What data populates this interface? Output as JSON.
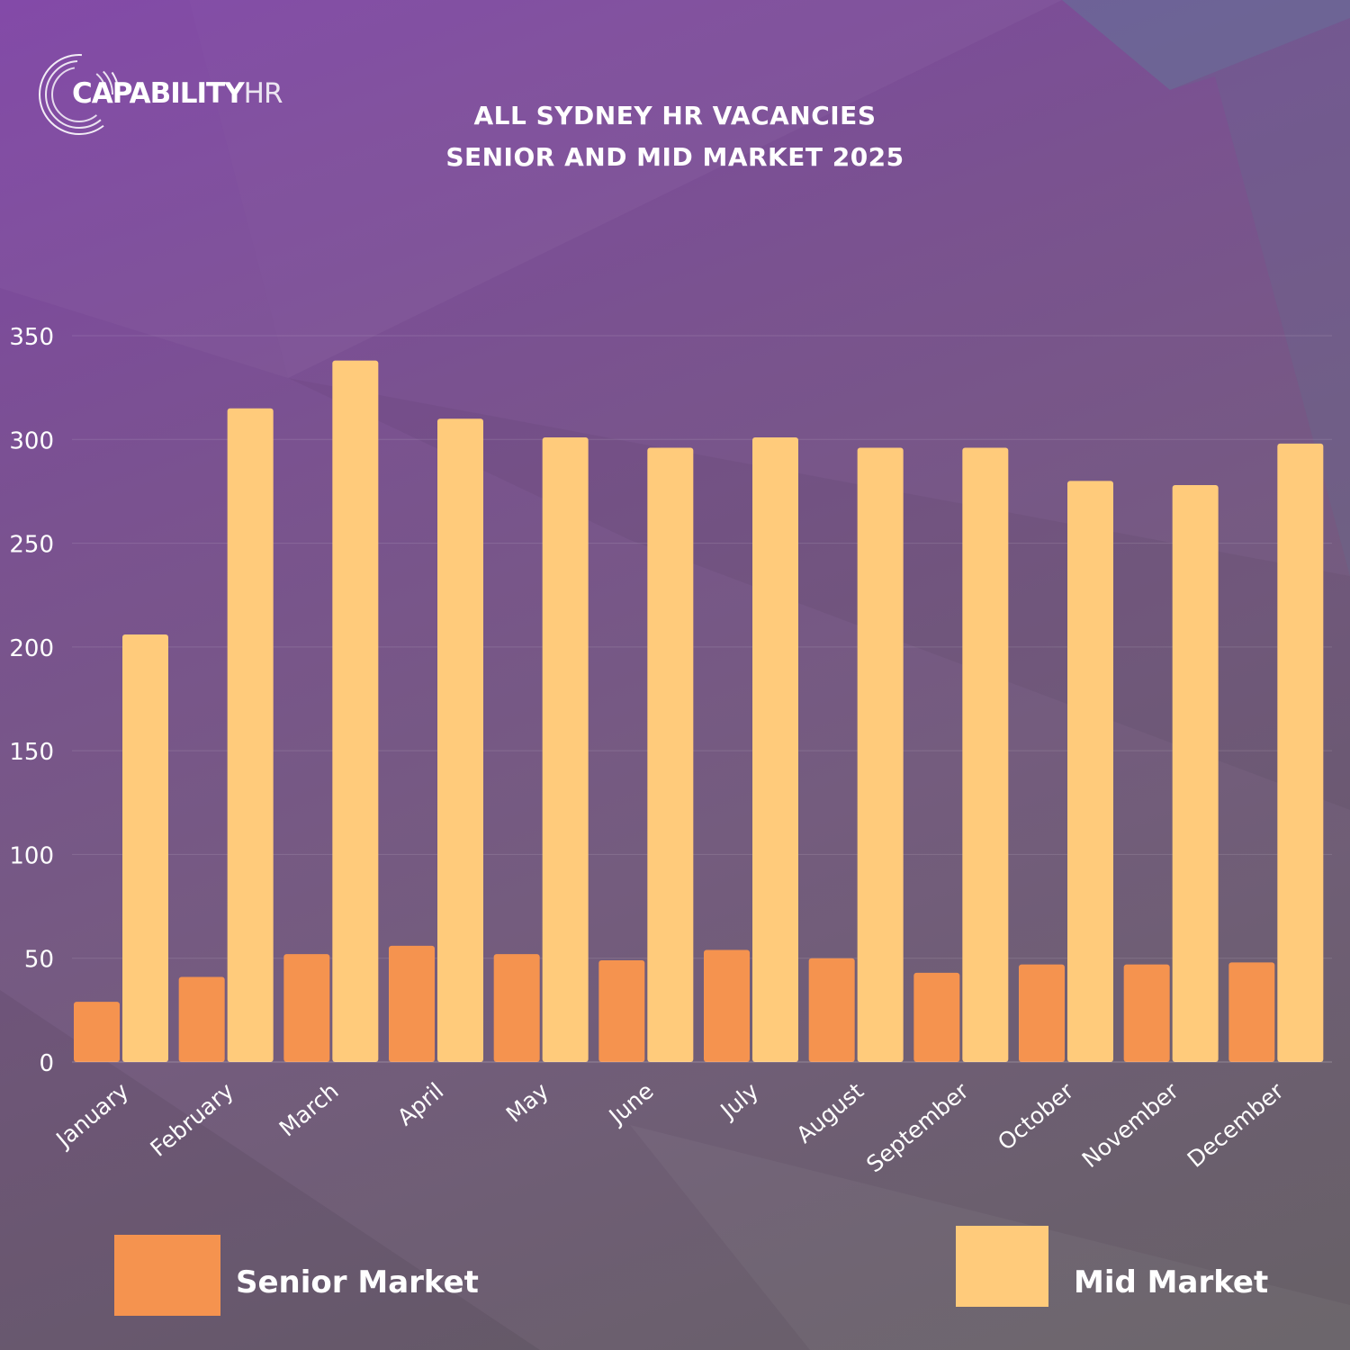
{
  "logo": {
    "name_bold": "CAPABILITY",
    "name_light": "HR"
  },
  "colors": {
    "senior": "#f5934f",
    "mid": "#ffcb7b",
    "text": "#ffffff",
    "grid": "rgba(255,255,255,0.12)"
  },
  "chart_data": {
    "type": "bar",
    "title": [
      "ALL SYDNEY HR VACANCIES",
      "SENIOR AND MID MARKET  2025"
    ],
    "xlabel": "",
    "ylabel": "",
    "ylim": [
      0,
      350
    ],
    "yticks": [
      "0",
      "50",
      "100",
      "150",
      "200",
      "250",
      "300",
      "350"
    ],
    "grid": true,
    "categories": [
      "January",
      "February",
      "March",
      "April",
      "May",
      "June",
      "July",
      "August",
      "September",
      "October",
      "November",
      "December"
    ],
    "series": [
      {
        "name": "Senior Market",
        "values": [
          29,
          41,
          52,
          56,
          52,
          49,
          54,
          50,
          43,
          47,
          47,
          48
        ]
      },
      {
        "name": "Mid Market",
        "values": [
          206,
          315,
          338,
          310,
          301,
          296,
          301,
          296,
          296,
          280,
          278,
          298
        ]
      }
    ],
    "legend_position": "bottom"
  }
}
